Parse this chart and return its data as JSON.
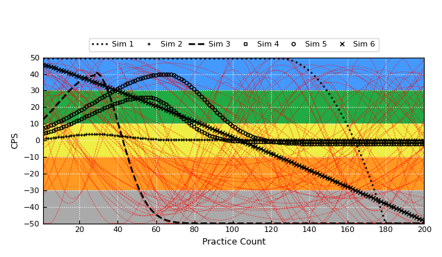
{
  "title": "",
  "xlabel": "Practice Count",
  "ylabel": "CPS",
  "xlim": [
    1,
    200
  ],
  "ylim": [
    -50,
    50
  ],
  "xticks": [
    20,
    40,
    60,
    80,
    100,
    120,
    140,
    160,
    180,
    200
  ],
  "yticks": [
    -50,
    -40,
    -30,
    -20,
    -10,
    0,
    10,
    20,
    30,
    40,
    50
  ],
  "bg_bands": [
    {
      "ymin": 30,
      "ymax": 50,
      "color": "#4499FF"
    },
    {
      "ymin": 10,
      "ymax": 30,
      "color": "#22AA44"
    },
    {
      "ymin": -10,
      "ymax": 10,
      "color": "#EEEE44"
    },
    {
      "ymin": -30,
      "ymax": -10,
      "color": "#FF9922"
    },
    {
      "ymin": -50,
      "ymax": -30,
      "color": "#AAAAAA"
    }
  ],
  "grid_color": "white",
  "red_alpha": 0.7,
  "figsize": [
    6.36,
    3.7
  ],
  "dpi": 100,
  "legend_labels": [
    "Sim 1",
    "Sim 2",
    "Sim 3",
    "Sim 4",
    "Sim 5",
    "Sim 6"
  ]
}
